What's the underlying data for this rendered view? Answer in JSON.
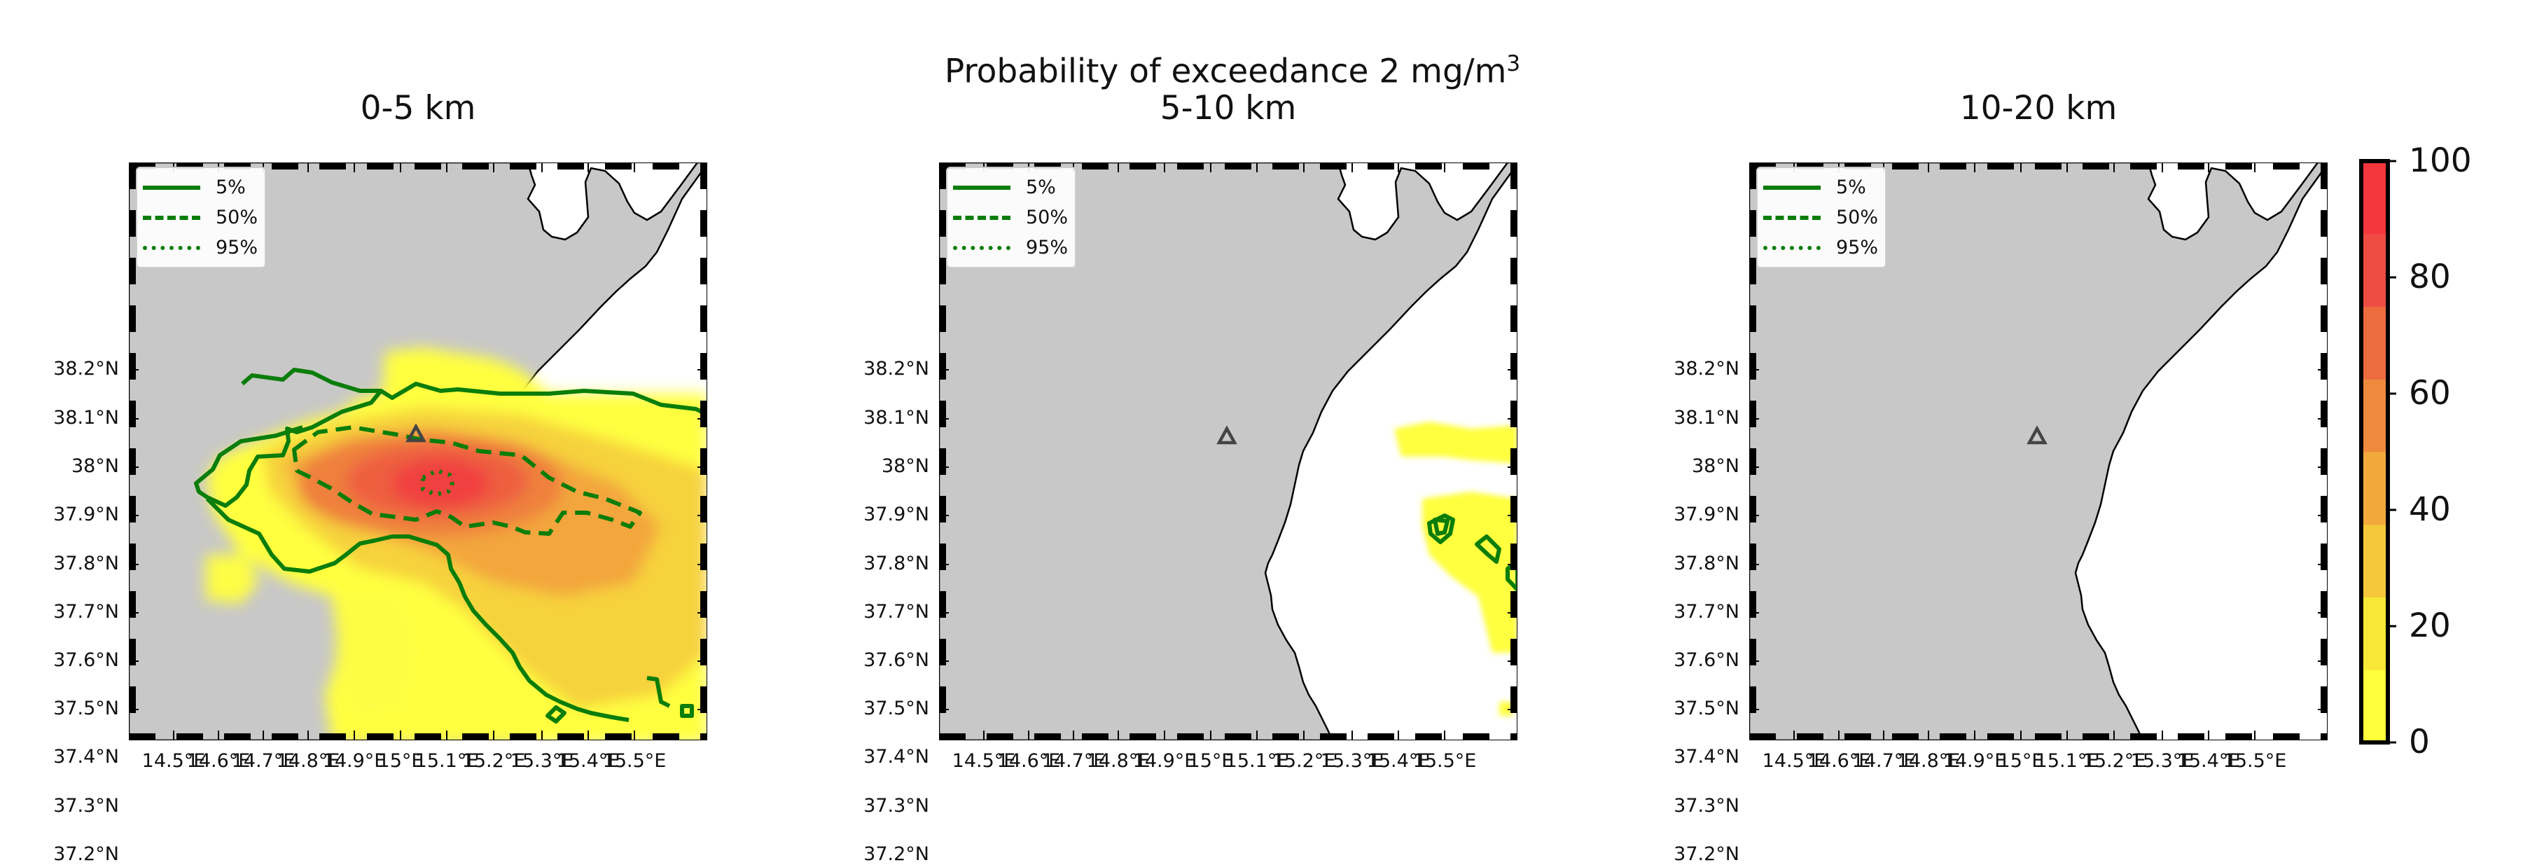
{
  "figure": {
    "suptitle": "Probability of exceedance 2 mg/m",
    "suptitle_superscript": "3"
  },
  "panels": [
    {
      "title": "0-5 km"
    },
    {
      "title": "5-10 km"
    },
    {
      "title": "10-20 km"
    }
  ],
  "axes": {
    "lat_ticks": [
      "38.2°N",
      "38.1°N",
      "38°N",
      "37.9°N",
      "37.8°N",
      "37.7°N",
      "37.6°N",
      "37.5°N",
      "37.4°N",
      "37.3°N",
      "37.2°N"
    ],
    "lon_ticks": [
      "14.5°E",
      "14.6°E",
      "14.7°E",
      "14.8°E",
      "14.9°E",
      "15°E",
      "15.1°E",
      "15.2°E",
      "15.3°E",
      "15.4°E",
      "15.5°E"
    ]
  },
  "legend": {
    "items": [
      {
        "label": "5%",
        "style": "solid"
      },
      {
        "label": "50%",
        "style": "dashed"
      },
      {
        "label": "95%",
        "style": "dotted"
      }
    ]
  },
  "colorbar": {
    "ticks": [
      "100",
      "80",
      "60",
      "40",
      "20",
      "0"
    ],
    "min": 0,
    "max": 100,
    "colors": [
      "#ffff3b",
      "#f7e737",
      "#f4c83a",
      "#f2a93c",
      "#ef8a3d",
      "#ee6a3f",
      "#ee4c43",
      "#f5363c"
    ]
  },
  "colors": {
    "land": "#c8c8c8",
    "sea": "#ffffff",
    "contour": "#0a7d0a",
    "coastline": "#000000",
    "vent_marker": "#444444"
  },
  "icons": {
    "vent": "triangle-marker"
  }
}
